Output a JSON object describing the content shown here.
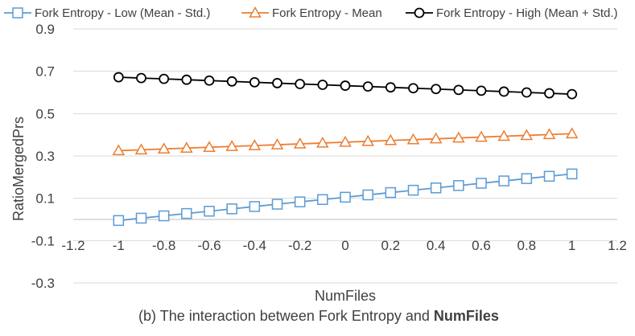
{
  "chart_data": {
    "type": "line",
    "xlabel": "NumFiles",
    "ylabel": "RatioMergedPrs",
    "xlim": [
      -1.2,
      1.2
    ],
    "ylim": [
      -0.3,
      0.9
    ],
    "x_ticks": [
      "-1.2",
      "-1",
      "-0.8",
      "-0.6",
      "-0.4",
      "-0.2",
      "0",
      "0.2",
      "0.4",
      "0.6",
      "0.8",
      "1",
      "1.2"
    ],
    "x_tick_values": [
      -1.2,
      -1,
      -0.8,
      -0.6,
      -0.4,
      -0.2,
      0,
      0.2,
      0.4,
      0.6,
      0.8,
      1,
      1.2
    ],
    "y_ticks": [
      "0.9",
      "0.7",
      "0.5",
      "0.3",
      "0.1",
      "-0.1",
      "-0.3"
    ],
    "y_tick_values": [
      0.9,
      0.7,
      0.5,
      0.3,
      0.1,
      -0.1,
      -0.3
    ],
    "grid": "horizontal",
    "legend_position": "top",
    "x": [
      -1,
      -0.9,
      -0.8,
      -0.7,
      -0.6,
      -0.5,
      -0.4,
      -0.3,
      -0.2,
      -0.1,
      0,
      0.1,
      0.2,
      0.3,
      0.4,
      0.5,
      0.6,
      0.7,
      0.8,
      0.9,
      1
    ],
    "series": [
      {
        "name": "Fork Entropy - Low (Mean - Std.)",
        "color": "#5b9bd5",
        "marker": "square",
        "values": [
          -0.005,
          0.006,
          0.017,
          0.028,
          0.039,
          0.05,
          0.061,
          0.072,
          0.083,
          0.094,
          0.105,
          0.116,
          0.127,
          0.138,
          0.149,
          0.16,
          0.171,
          0.182,
          0.193,
          0.204,
          0.215
        ]
      },
      {
        "name": "Fork Entropy - Mean",
        "color": "#ed7d31",
        "marker": "triangle",
        "values": [
          0.325,
          0.329,
          0.333,
          0.337,
          0.341,
          0.345,
          0.349,
          0.353,
          0.357,
          0.361,
          0.365,
          0.369,
          0.373,
          0.377,
          0.381,
          0.385,
          0.389,
          0.393,
          0.397,
          0.401,
          0.405
        ]
      },
      {
        "name": "Fork Entropy - High (Mean + Std.)",
        "color": "#000000",
        "marker": "circle",
        "values": [
          0.672,
          0.668,
          0.664,
          0.66,
          0.656,
          0.652,
          0.648,
          0.644,
          0.64,
          0.636,
          0.632,
          0.628,
          0.624,
          0.62,
          0.616,
          0.612,
          0.608,
          0.604,
          0.6,
          0.596,
          0.592
        ]
      }
    ],
    "caption_prefix": "(b) The interaction between Fork Entropy and ",
    "caption_bold": "NumFiles",
    "colors": {
      "grid": "#d9d9d9",
      "text": "#404040"
    }
  }
}
